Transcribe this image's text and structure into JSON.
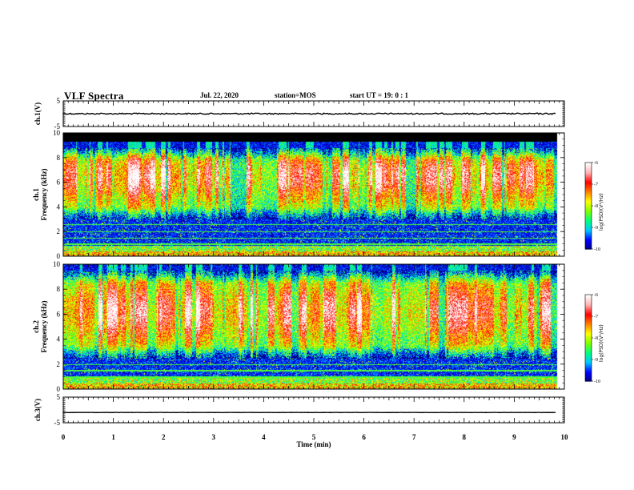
{
  "header": {
    "title": "VLF Spectra",
    "date": "Jul. 22, 2020",
    "station": "station=MOS",
    "start": "start UT = 19: 0 : 1"
  },
  "chart_data": [
    {
      "type": "line",
      "name": "ch1-waveform",
      "ylabel": "ch.1(V)",
      "ylim": [
        -5,
        5
      ],
      "yticks": [
        "5",
        "-5"
      ],
      "x": [
        0,
        10
      ],
      "values": [
        0,
        0
      ]
    },
    {
      "type": "heatmap",
      "name": "ch1-spectrogram",
      "ylabel": "ch.1\nFrequency (kHz)",
      "ylabel_line1": "ch.1",
      "ylabel_line2": "Frequency (kHz)",
      "ylim": [
        0,
        10
      ],
      "yticks": [
        "0",
        "2",
        "4",
        "6",
        "8",
        "10"
      ],
      "xlim": [
        0,
        10
      ],
      "colorbar": {
        "label": "log(PSD)(V²/Hz)",
        "range": [
          -10,
          -6
        ],
        "ticks": [
          "-6",
          "-7",
          "-8",
          "-9",
          "-10"
        ]
      },
      "data_end_min": 9.85,
      "saturated_band_khz": [
        9.3,
        10
      ],
      "emission_band_khz": [
        3,
        8.8
      ],
      "peak_band_khz": [
        5.5,
        7.5
      ]
    },
    {
      "type": "heatmap",
      "name": "ch2-spectrogram",
      "ylabel": "ch.2\nFrequency (kHz)",
      "ylabel_line1": "ch.2",
      "ylabel_line2": "Frequency (kHz)",
      "ylim": [
        0,
        10
      ],
      "yticks": [
        "0",
        "2",
        "4",
        "6",
        "8",
        "10"
      ],
      "xlim": [
        0,
        10
      ],
      "colorbar": {
        "label": "log(PSD)(V²/Hz)",
        "range": [
          -10,
          -6
        ],
        "ticks": [
          "-6",
          "-7",
          "-8",
          "-9",
          "-10"
        ]
      },
      "data_end_min": 9.85,
      "emission_band_khz": [
        2.5,
        9.5
      ],
      "peak_band_khz": [
        5,
        7.5
      ]
    },
    {
      "type": "line",
      "name": "ch3-waveform",
      "ylabel": "ch.3(V)",
      "ylim": [
        -5,
        5
      ],
      "yticks": [
        "5",
        "-5"
      ],
      "x": [
        0,
        10
      ],
      "values": [
        -1,
        -1
      ]
    }
  ],
  "xaxis": {
    "label": "Time (min)",
    "xlim": [
      0,
      10
    ],
    "ticks": [
      "0",
      "1",
      "2",
      "3",
      "4",
      "5",
      "6",
      "7",
      "8",
      "9",
      "10"
    ]
  },
  "colors": {
    "background": "#ffffff",
    "axis": "#000000",
    "colormap": [
      "#000080",
      "#0000ff",
      "#00c8ff",
      "#00ff80",
      "#80ff00",
      "#ffff00",
      "#ff8000",
      "#ff0000",
      "#ffb4b4",
      "#ffffff"
    ]
  }
}
